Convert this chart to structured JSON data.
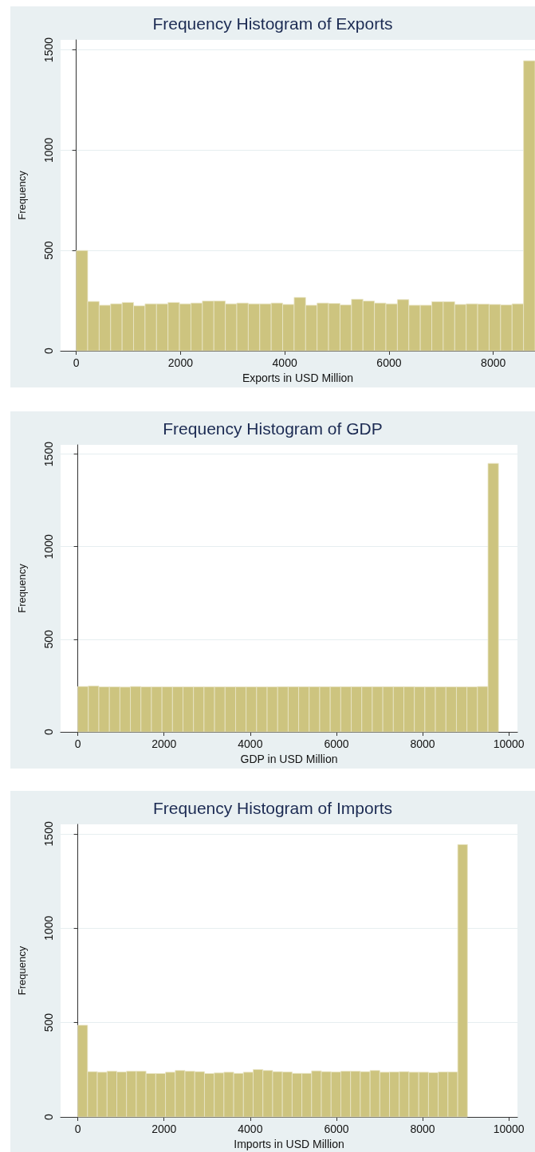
{
  "chart_data": [
    {
      "type": "histogram",
      "title": "Frequency Histogram of Exports",
      "xlabel": "Exports in USD Million",
      "ylabel": "Frequency",
      "color": "#cdc47f",
      "grid": "y",
      "bins": [
        0,
        220,
        440,
        660,
        880,
        1100,
        1320,
        1540,
        1760,
        1980,
        2200,
        2420,
        2640,
        2860,
        3080,
        3300,
        3520,
        3740,
        3960,
        4180,
        4400,
        4620,
        4840,
        5060,
        5280,
        5500,
        5720,
        5940,
        6160,
        6380,
        6600,
        6820,
        7040,
        7260,
        7480,
        7700,
        7920,
        8140,
        8360,
        8580,
        8800
      ],
      "values": [
        500,
        246,
        227,
        234,
        241,
        224,
        234,
        234,
        241,
        234,
        238,
        248,
        248,
        234,
        238,
        234,
        234,
        238,
        231,
        266,
        227,
        238,
        236,
        229,
        257,
        248,
        238,
        234,
        255,
        227,
        227,
        245,
        245,
        231,
        234,
        233,
        231,
        229,
        234,
        1446
      ],
      "xlim": [
        -300,
        8800
      ],
      "xticks": [
        0,
        2000,
        4000,
        6000,
        8000
      ],
      "ylim": [
        0,
        1550
      ],
      "yticks": [
        0,
        500,
        1000,
        1500
      ]
    },
    {
      "type": "histogram",
      "title": "Frequency Histogram of GDP",
      "xlabel": "GDP in USD Million",
      "ylabel": "Frequency",
      "color": "#cdc47f",
      "grid": "y",
      "bins": [
        0,
        244,
        488,
        732,
        976,
        1220,
        1464,
        1708,
        1952,
        2196,
        2440,
        2684,
        2928,
        3172,
        3416,
        3660,
        3904,
        4148,
        4392,
        4636,
        4880,
        5124,
        5368,
        5612,
        5856,
        6100,
        6344,
        6588,
        6832,
        7076,
        7320,
        7564,
        7808,
        8052,
        8296,
        8540,
        8784,
        9028,
        9272,
        9516,
        9760
      ],
      "values": [
        245,
        248,
        243,
        243,
        242,
        245,
        243,
        243,
        243,
        243,
        243,
        243,
        243,
        243,
        243,
        243,
        243,
        243,
        243,
        244,
        244,
        244,
        244,
        244,
        244,
        244,
        244,
        244,
        244,
        244,
        244,
        244,
        243,
        243,
        243,
        243,
        243,
        243,
        245,
        1450
      ],
      "xlim": [
        -400,
        10200
      ],
      "xticks": [
        0,
        2000,
        4000,
        6000,
        8000,
        10000
      ],
      "ylim": [
        0,
        1550
      ],
      "yticks": [
        0,
        500,
        1000,
        1500
      ]
    },
    {
      "type": "histogram",
      "title": "Frequency Histogram of Imports",
      "xlabel": "Imports in USD Million",
      "ylabel": "Frequency",
      "color": "#cdc47f",
      "grid": "y",
      "bins": [
        0,
        226,
        452,
        678,
        904,
        1130,
        1356,
        1582,
        1808,
        2034,
        2260,
        2486,
        2712,
        2938,
        3164,
        3390,
        3616,
        3842,
        4068,
        4294,
        4520,
        4746,
        4972,
        5198,
        5424,
        5650,
        5876,
        6102,
        6328,
        6554,
        6780,
        7006,
        7232,
        7458,
        7684,
        7910,
        8136,
        8362,
        8588,
        8814,
        9040
      ],
      "values": [
        486,
        240,
        237,
        242,
        238,
        242,
        242,
        230,
        230,
        237,
        246,
        242,
        240,
        230,
        233,
        237,
        231,
        237,
        251,
        246,
        240,
        238,
        231,
        231,
        244,
        240,
        238,
        242,
        242,
        240,
        246,
        237,
        238,
        240,
        237,
        237,
        235,
        238,
        238,
        1443
      ],
      "xlim": [
        -400,
        10200
      ],
      "xticks": [
        0,
        2000,
        4000,
        6000,
        8000,
        10000
      ],
      "ylim": [
        0,
        1550
      ],
      "yticks": [
        0,
        500,
        1000,
        1500
      ]
    }
  ]
}
